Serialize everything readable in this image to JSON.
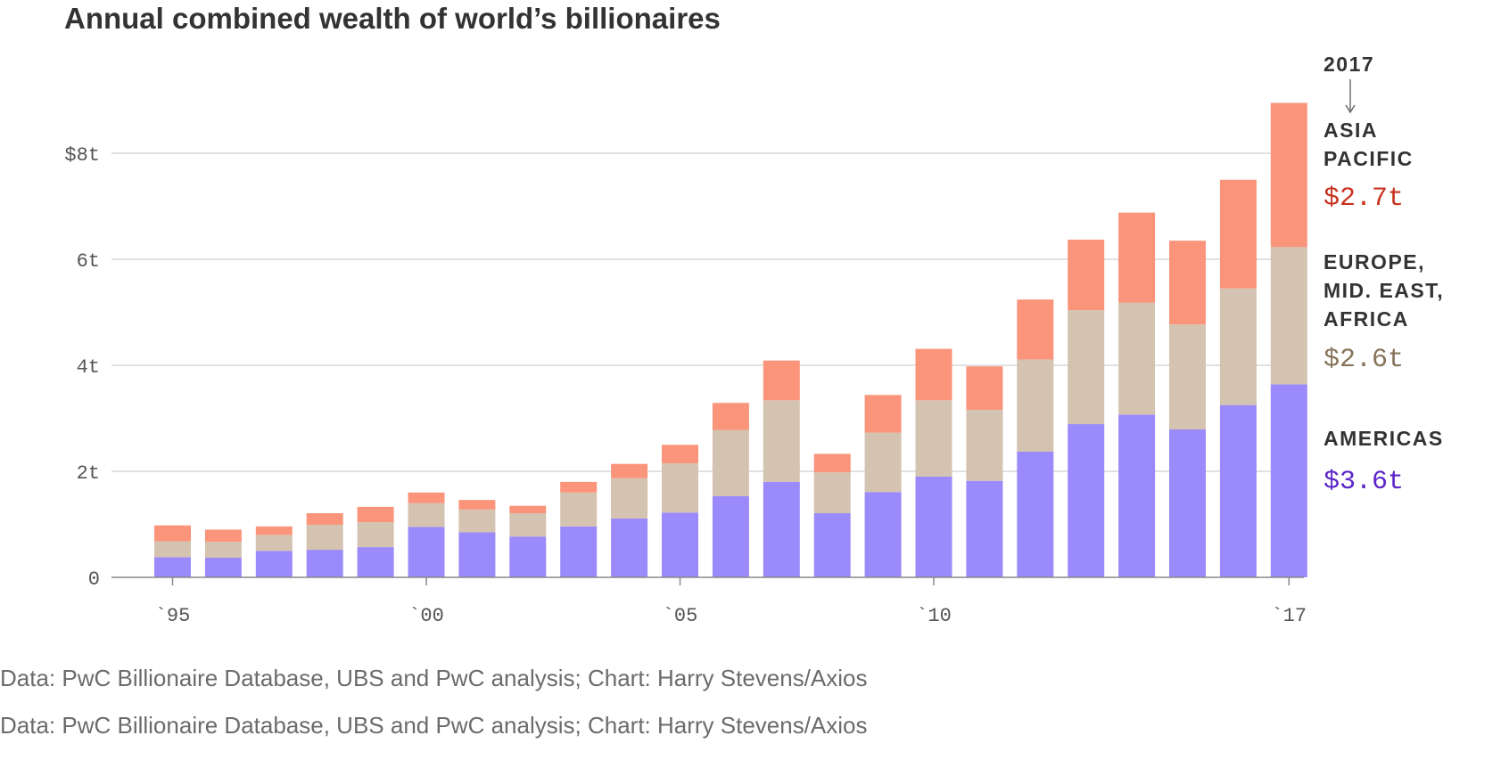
{
  "chart_data": {
    "type": "bar",
    "stacked": true,
    "title": "Annual combined wealth of world’s billionaires",
    "xlabel": "",
    "ylabel": "",
    "ylim": [
      0,
      9
    ],
    "y_ticks": [
      {
        "value": 0,
        "label": "0"
      },
      {
        "value": 2,
        "label": "2t"
      },
      {
        "value": 4,
        "label": "4t"
      },
      {
        "value": 6,
        "label": "6t"
      },
      {
        "value": 8,
        "label": "$8t"
      }
    ],
    "grid": true,
    "x_ticks": [
      {
        "year": 1995,
        "label": "`95"
      },
      {
        "year": 2000,
        "label": "`00"
      },
      {
        "year": 2005,
        "label": "`05"
      },
      {
        "year": 2010,
        "label": "`10"
      },
      {
        "year": 2017,
        "label": "`17"
      }
    ],
    "categories": [
      1995,
      1996,
      1997,
      1998,
      1999,
      2000,
      2001,
      2002,
      2003,
      2004,
      2005,
      2006,
      2007,
      2008,
      2009,
      2010,
      2011,
      2012,
      2013,
      2014,
      2015,
      2016,
      2017
    ],
    "series": [
      {
        "name": "AMERICAS",
        "color": "#9b8afb",
        "values": [
          0.38,
          0.37,
          0.5,
          0.52,
          0.57,
          0.95,
          0.85,
          0.77,
          0.96,
          1.11,
          1.22,
          1.53,
          1.8,
          1.21,
          1.61,
          1.9,
          1.82,
          2.37,
          2.89,
          3.07,
          2.79,
          3.25,
          3.64
        ]
      },
      {
        "name": "EUROPE, MID. EAST, AFRICA",
        "color": "#d4c3b0",
        "values": [
          0.3,
          0.3,
          0.3,
          0.47,
          0.47,
          0.45,
          0.43,
          0.44,
          0.64,
          0.76,
          0.93,
          1.25,
          1.54,
          0.77,
          1.12,
          1.44,
          1.34,
          1.74,
          2.15,
          2.11,
          1.98,
          2.2,
          2.59
        ]
      },
      {
        "name": "ASIA PACIFIC",
        "color": "#fa947b",
        "values": [
          0.3,
          0.23,
          0.16,
          0.22,
          0.29,
          0.2,
          0.18,
          0.14,
          0.2,
          0.27,
          0.35,
          0.51,
          0.75,
          0.35,
          0.71,
          0.97,
          0.82,
          1.13,
          1.33,
          1.7,
          1.58,
          2.05,
          2.72
        ]
      }
    ],
    "annotations": {
      "year_label": "2017",
      "asia_label_lines": [
        "ASIA",
        "PACIFIC"
      ],
      "asia_value": "$2.7t",
      "europe_label_lines": [
        "EUROPE,",
        "MID. EAST,",
        "AFRICA"
      ],
      "europe_value": "$2.6t",
      "americas_label_lines": [
        "AMERICAS"
      ],
      "americas_value": "$3.6t"
    },
    "annotation_colors": {
      "asia_value": "#c8321e",
      "europe_value": "#857459",
      "americas_value": "#5b26c8",
      "label": "#333333"
    },
    "legend": "right"
  },
  "sources": [
    "Data: PwC Billionaire Database, UBS and PwC analysis; Chart: Harry Stevens/Axios",
    "Data: PwC Billionaire Database, UBS and PwC analysis; Chart: Harry Stevens/Axios"
  ],
  "colors": {
    "axis": "#888888",
    "grid": "#cfcfcf",
    "tick_text": "#555555",
    "title": "#333333"
  }
}
